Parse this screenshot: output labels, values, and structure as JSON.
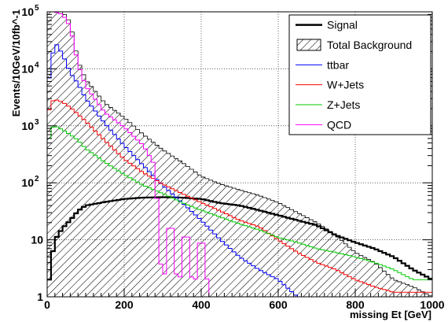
{
  "chart_data": {
    "type": "histogram",
    "xlabel": "missing Et [GeV]",
    "ylabel": "Events/10GeV/10fb^-1",
    "xlim": [
      0,
      1000
    ],
    "ylim": [
      1,
      100000
    ],
    "y_scale": "log",
    "bin_width": 10,
    "grid": true,
    "legend_position": "top-right",
    "x_ticks": [
      "0",
      "200",
      "400",
      "600",
      "800",
      "1000"
    ],
    "y_ticks": [
      {
        "value": 1,
        "base": "1",
        "exp": ""
      },
      {
        "value": 10,
        "base": "10",
        "exp": ""
      },
      {
        "value": 100,
        "base": "10",
        "exp": "2"
      },
      {
        "value": 1000,
        "base": "10",
        "exp": "3"
      },
      {
        "value": 10000,
        "base": "10",
        "exp": "4"
      },
      {
        "value": 100000,
        "base": "10",
        "exp": "5"
      }
    ],
    "series": [
      {
        "name": "Signal",
        "color": "#000000",
        "style": "thick-line",
        "points": [
          [
            0,
            1
          ],
          [
            10,
            4
          ],
          [
            20,
            10
          ],
          [
            40,
            16
          ],
          [
            60,
            22
          ],
          [
            80,
            32
          ],
          [
            100,
            40
          ],
          [
            150,
            46
          ],
          [
            200,
            52
          ],
          [
            250,
            55
          ],
          [
            300,
            56
          ],
          [
            350,
            55
          ],
          [
            400,
            52
          ],
          [
            450,
            44
          ],
          [
            500,
            40
          ],
          [
            550,
            33
          ],
          [
            600,
            27
          ],
          [
            650,
            22
          ],
          [
            700,
            18
          ],
          [
            750,
            12
          ],
          [
            800,
            9
          ],
          [
            850,
            7
          ],
          [
            900,
            5
          ],
          [
            950,
            3
          ],
          [
            1000,
            2
          ]
        ]
      },
      {
        "name": "Total Background",
        "color": "#000000",
        "style": "hatched",
        "points": [
          [
            0,
            100000
          ],
          [
            10,
            100000
          ],
          [
            20,
            100000
          ],
          [
            40,
            100000
          ],
          [
            60,
            65000
          ],
          [
            80,
            14000
          ],
          [
            100,
            6500
          ],
          [
            150,
            2500
          ],
          [
            200,
            1400
          ],
          [
            250,
            700
          ],
          [
            300,
            380
          ],
          [
            350,
            230
          ],
          [
            400,
            130
          ],
          [
            450,
            95
          ],
          [
            500,
            75
          ],
          [
            550,
            60
          ],
          [
            600,
            45
          ],
          [
            650,
            30
          ],
          [
            700,
            20
          ],
          [
            750,
            12
          ],
          [
            800,
            6
          ],
          [
            850,
            4
          ],
          [
            900,
            2
          ],
          [
            950,
            1.5
          ],
          [
            1000,
            1
          ]
        ]
      },
      {
        "name": "ttbar",
        "color": "#0000ff",
        "style": "line",
        "points": [
          [
            0,
            4000
          ],
          [
            10,
            12000
          ],
          [
            20,
            30000
          ],
          [
            40,
            18000
          ],
          [
            60,
            8500
          ],
          [
            80,
            5500
          ],
          [
            100,
            3000
          ],
          [
            150,
            1100
          ],
          [
            200,
            450
          ],
          [
            250,
            200
          ],
          [
            300,
            90
          ],
          [
            350,
            45
          ],
          [
            400,
            22
          ],
          [
            450,
            10
          ],
          [
            500,
            5
          ],
          [
            550,
            3
          ],
          [
            600,
            2
          ],
          [
            650,
            1
          ],
          [
            700,
            1
          ]
        ]
      },
      {
        "name": "W+Jets",
        "color": "#ff0000",
        "style": "line",
        "points": [
          [
            0,
            1400
          ],
          [
            10,
            2600
          ],
          [
            20,
            2900
          ],
          [
            40,
            2600
          ],
          [
            60,
            2100
          ],
          [
            80,
            1600
          ],
          [
            100,
            1200
          ],
          [
            150,
            550
          ],
          [
            200,
            260
          ],
          [
            250,
            150
          ],
          [
            300,
            95
          ],
          [
            350,
            65
          ],
          [
            400,
            45
          ],
          [
            450,
            32
          ],
          [
            500,
            22
          ],
          [
            550,
            17
          ],
          [
            600,
            10
          ],
          [
            650,
            6
          ],
          [
            700,
            4
          ],
          [
            750,
            3
          ],
          [
            800,
            2
          ],
          [
            850,
            1.5
          ],
          [
            900,
            1.2
          ]
        ]
      },
      {
        "name": "Z+Jets",
        "color": "#00cc00",
        "style": "line",
        "points": [
          [
            0,
            400
          ],
          [
            10,
            900
          ],
          [
            20,
            1000
          ],
          [
            40,
            850
          ],
          [
            60,
            700
          ],
          [
            80,
            560
          ],
          [
            100,
            400
          ],
          [
            150,
            230
          ],
          [
            200,
            140
          ],
          [
            250,
            90
          ],
          [
            300,
            65
          ],
          [
            350,
            45
          ],
          [
            400,
            33
          ],
          [
            450,
            25
          ],
          [
            500,
            19
          ],
          [
            550,
            15
          ],
          [
            600,
            11
          ],
          [
            650,
            9
          ],
          [
            700,
            7
          ],
          [
            750,
            6
          ],
          [
            800,
            5
          ],
          [
            850,
            4
          ],
          [
            900,
            3
          ],
          [
            950,
            2
          ],
          [
            1000,
            2
          ]
        ]
      },
      {
        "name": "QCD",
        "color": "#ff00ff",
        "style": "line",
        "points": [
          [
            0,
            100000
          ],
          [
            10,
            100000
          ],
          [
            20,
            100000
          ],
          [
            40,
            90000
          ],
          [
            60,
            55000
          ],
          [
            80,
            12000
          ],
          [
            100,
            5000
          ],
          [
            150,
            1700
          ],
          [
            200,
            950
          ],
          [
            250,
            450
          ],
          [
            280,
            200
          ],
          [
            300,
            1
          ],
          [
            320,
            40
          ],
          [
            340,
            1
          ],
          [
            360,
            25
          ],
          [
            380,
            1
          ],
          [
            400,
            18
          ],
          [
            420,
            1
          ],
          [
            440,
            1
          ],
          [
            460,
            1
          ]
        ]
      }
    ],
    "legend": [
      {
        "name": "Signal",
        "style": "thick-line",
        "color": "#000000"
      },
      {
        "name": "Total Background",
        "style": "hatched",
        "color": "#000000"
      },
      {
        "name": "ttbar",
        "style": "line",
        "color": "#0000ff"
      },
      {
        "name": "W+Jets",
        "style": "line",
        "color": "#ff0000"
      },
      {
        "name": "Z+Jets",
        "style": "line",
        "color": "#00cc00"
      },
      {
        "name": "QCD",
        "style": "line",
        "color": "#ff00ff"
      }
    ]
  }
}
